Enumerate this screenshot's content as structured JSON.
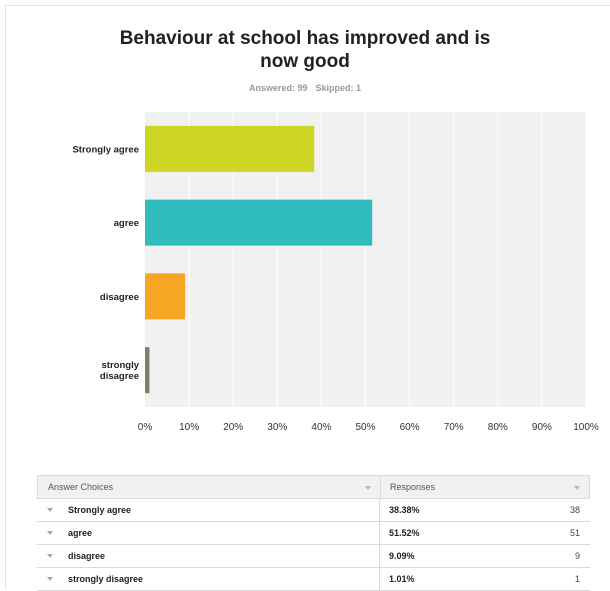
{
  "survey": {
    "title": "Behaviour at school has improved and is now good",
    "answered_label": "Answered: 99",
    "skipped_label": "Skipped: 1"
  },
  "chart_data": {
    "type": "bar",
    "orientation": "horizontal",
    "categories": [
      "Strongly agree",
      "agree",
      "disagree",
      "strongly disagree"
    ],
    "category_labels": [
      [
        "Strongly agree"
      ],
      [
        "agree"
      ],
      [
        "disagree"
      ],
      [
        "strongly",
        "disagree"
      ]
    ],
    "values": [
      38.38,
      51.52,
      9.09,
      1.01
    ],
    "colors": [
      "#cdd526",
      "#30bcbc",
      "#f6a623",
      "#7f7f6b"
    ],
    "xlim": [
      0,
      100
    ],
    "ticks": [
      "0%",
      "10%",
      "20%",
      "30%",
      "40%",
      "50%",
      "60%",
      "70%",
      "80%",
      "90%",
      "100%"
    ],
    "grid": true
  },
  "table": {
    "header_choices": "Answer Choices",
    "header_responses": "Responses",
    "rows": [
      {
        "choice": "Strongly agree",
        "percent": "38.38%",
        "count": "38"
      },
      {
        "choice": "agree",
        "percent": "51.52%",
        "count": "51"
      },
      {
        "choice": "disagree",
        "percent": "9.09%",
        "count": "9"
      },
      {
        "choice": "strongly disagree",
        "percent": "1.01%",
        "count": "1"
      }
    ]
  }
}
